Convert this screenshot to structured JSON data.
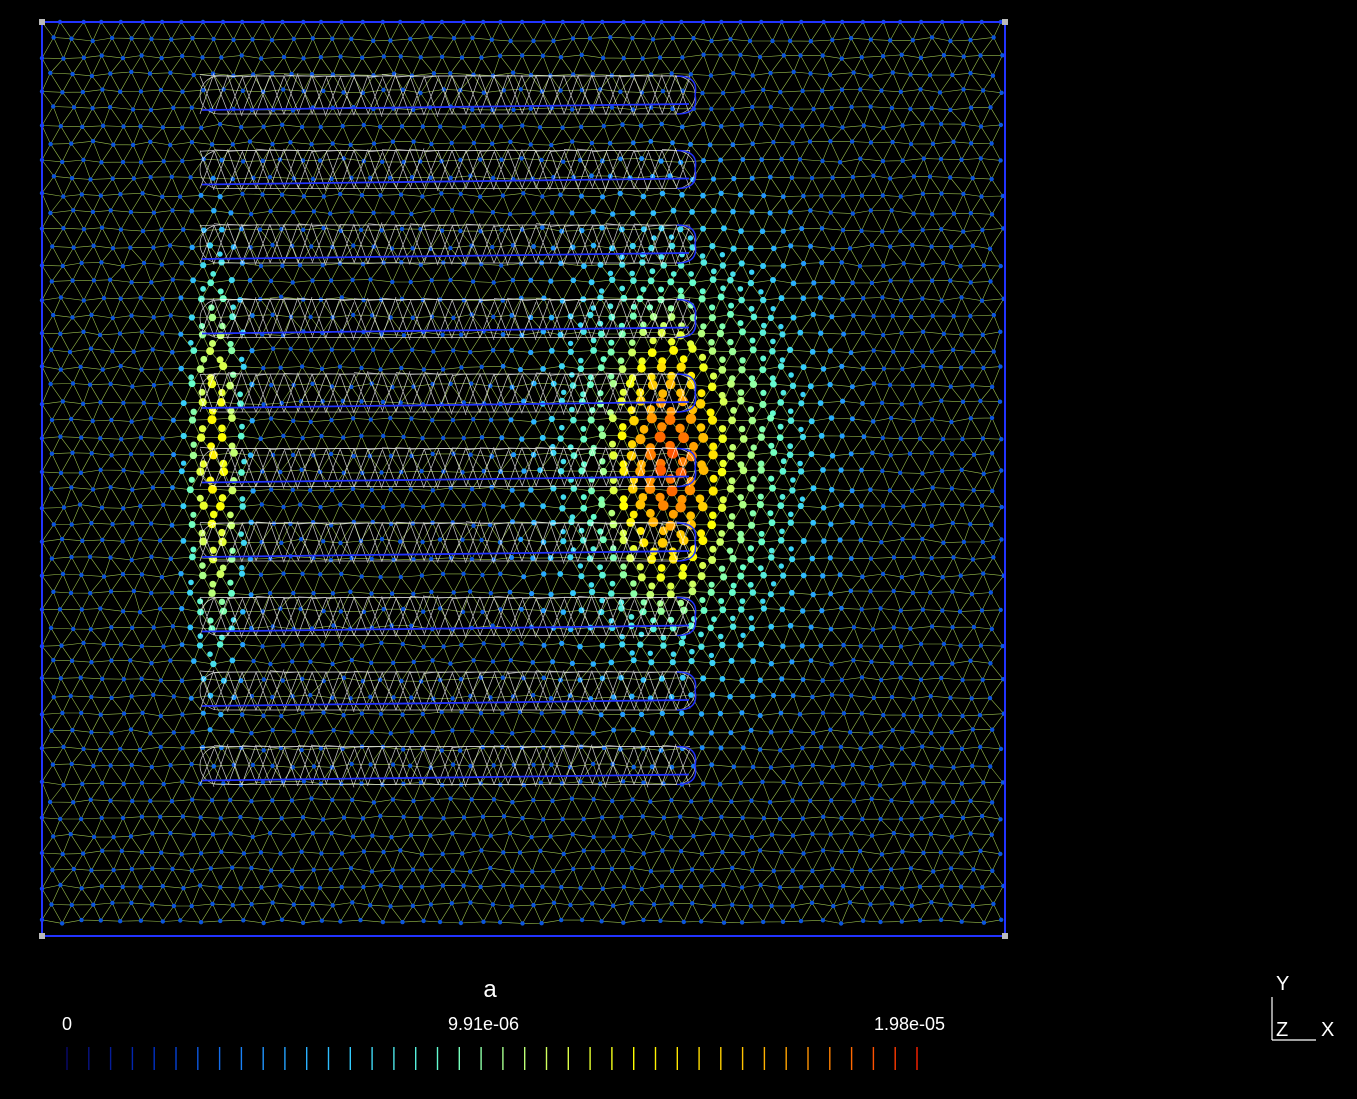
{
  "viewport": {
    "background": "#000000",
    "frame_color": "#2233ff",
    "mesh_color": "#ccff66",
    "wire_color": "#ffffff",
    "palette": [
      "#0a0a6e",
      "#0033cc",
      "#1e90ff",
      "#33ccff",
      "#66ffcc",
      "#ccff66",
      "#ffff00",
      "#ffcc00",
      "#ff8800",
      "#ff2200"
    ]
  },
  "legend": {
    "title": "a",
    "tick_min": "0",
    "tick_mid": "9.91e-06",
    "tick_max": "1.98e-05",
    "range": [
      0,
      1.98e-05
    ]
  },
  "axes": {
    "y_label": "Y",
    "z_label": "Z",
    "x_label": "X"
  }
}
